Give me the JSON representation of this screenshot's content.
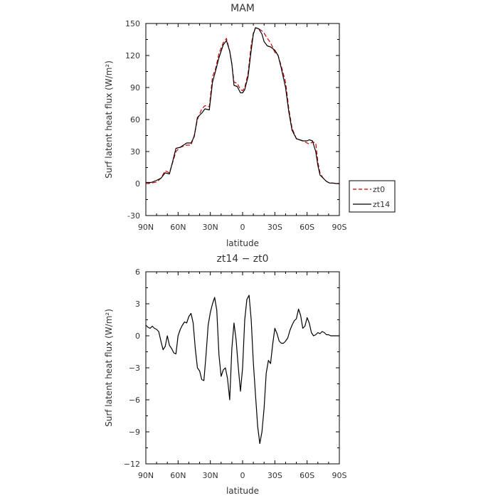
{
  "chart_data": [
    {
      "type": "line",
      "title": "MAM",
      "xlabel": "latitude",
      "ylabel": "Surf latent heat flux (W/m²)",
      "x_range": [
        90,
        -90
      ],
      "ylim": [
        -30,
        150
      ],
      "x_ticks": [
        90,
        60,
        30,
        0,
        -30,
        -60,
        -90
      ],
      "x_tick_labels": [
        "90N",
        "60N",
        "30N",
        "0",
        "30S",
        "60S",
        "90S"
      ],
      "y_ticks": [
        -30,
        0,
        30,
        60,
        90,
        120,
        150
      ],
      "y_tick_labels": [
        "-30",
        "0",
        "30",
        "60",
        "90",
        "120",
        "150"
      ],
      "grid": false,
      "legend_position": "outside-right",
      "x": [
        90,
        85,
        80,
        76,
        72,
        68,
        65,
        62,
        58,
        55,
        52,
        48,
        45,
        42,
        38,
        35,
        31,
        28,
        25,
        22,
        18,
        15,
        12,
        10,
        8,
        5,
        2,
        0,
        -2,
        -5,
        -8,
        -10,
        -12,
        -15,
        -18,
        -20,
        -23,
        -26,
        -30,
        -33,
        -36,
        -40,
        -43,
        -46,
        -50,
        -53,
        -56,
        -60,
        -62,
        -65,
        -68,
        -70,
        -72,
        -75,
        -78,
        -81,
        -84,
        -87,
        -90
      ],
      "series": [
        {
          "name": "zt0",
          "color": "#cc0000",
          "dash": true,
          "values": [
            0,
            0.5,
            1.5,
            5,
            12,
            10,
            20,
            30,
            34,
            35,
            36,
            36,
            45,
            60,
            70,
            73,
            72,
            100,
            108,
            122,
            132,
            136,
            124,
            112,
            95,
            94,
            88,
            87,
            90,
            103,
            130,
            141,
            146,
            145,
            143,
            141,
            136,
            132,
            123,
            120,
            110,
            95,
            70,
            52,
            42,
            41,
            40,
            38,
            37,
            39,
            38,
            20,
            10,
            5,
            2,
            0.5,
            0.5,
            0,
            0
          ]
        },
        {
          "name": "zt14",
          "color": "#000000",
          "dash": false,
          "values": [
            1,
            1,
            3,
            5,
            10,
            9,
            21,
            33,
            34,
            36,
            38,
            38,
            44,
            62,
            66,
            70,
            69,
            95,
            106,
            118,
            130,
            134,
            124,
            112,
            92,
            91,
            85,
            85,
            88,
            100,
            125,
            140,
            146,
            145,
            140,
            133,
            129,
            128,
            125,
            120,
            108,
            90,
            67,
            50,
            42,
            41,
            40,
            40,
            41,
            40,
            30,
            17,
            8,
            5,
            2,
            0.5,
            0.5,
            0,
            0
          ]
        }
      ]
    },
    {
      "type": "line",
      "title": "zt14 − zt0",
      "xlabel": "latitude",
      "ylabel": "Surf latent heat flux (W/m²)",
      "x_range": [
        90,
        -90
      ],
      "ylim": [
        -12,
        6
      ],
      "x_ticks": [
        90,
        60,
        30,
        0,
        -30,
        -60,
        -90
      ],
      "x_tick_labels": [
        "90N",
        "60N",
        "30N",
        "0",
        "30S",
        "60S",
        "90S"
      ],
      "y_ticks": [
        -12,
        -9,
        -6,
        -3,
        0,
        3,
        6
      ],
      "y_tick_labels": [
        "−12",
        "−9",
        "−6",
        "−3",
        "0",
        "3",
        "6"
      ],
      "grid": false,
      "x": [
        90,
        88,
        86,
        84,
        82,
        80,
        78,
        76,
        74,
        72,
        70,
        68,
        66,
        64,
        62,
        60,
        58,
        56,
        54,
        52,
        50,
        48,
        46,
        44,
        42,
        40,
        38,
        36,
        34,
        32,
        30,
        28,
        26,
        24,
        22,
        20,
        18,
        16,
        14,
        12,
        10,
        8,
        6,
        4,
        2,
        0,
        -2,
        -4,
        -6,
        -8,
        -10,
        -12,
        -14,
        -16,
        -18,
        -20,
        -22,
        -24,
        -26,
        -28,
        -30,
        -32,
        -34,
        -36,
        -38,
        -40,
        -42,
        -44,
        -46,
        -48,
        -50,
        -52,
        -54,
        -56,
        -58,
        -60,
        -62,
        -64,
        -66,
        -68,
        -70,
        -72,
        -74,
        -76,
        -78,
        -80,
        -82,
        -84,
        -86,
        -88,
        -90
      ],
      "series": [
        {
          "name": "",
          "color": "#000000",
          "values": [
            1,
            0.8,
            0.7,
            0.9,
            0.7,
            0.6,
            0.4,
            -0.5,
            -1.3,
            -1.0,
            0,
            -0.9,
            -1.2,
            -1.6,
            -1.7,
            0,
            0.6,
            1.0,
            1.3,
            1.2,
            1.8,
            2.1,
            1.2,
            -1.2,
            -3.0,
            -3.3,
            -4.1,
            -4.2,
            -1.8,
            1.0,
            2.2,
            3.0,
            3.6,
            2.4,
            -1.8,
            -3.8,
            -3.2,
            -3.0,
            -4.0,
            -6.0,
            -1.2,
            1.2,
            -0.4,
            -3.0,
            -5.2,
            -3.0,
            1.5,
            3.4,
            3.8,
            1.5,
            -2.5,
            -5.5,
            -8.5,
            -10.1,
            -9.0,
            -6.8,
            -3.5,
            -2.3,
            -2.6,
            -0.8,
            0.7,
            0.2,
            -0.5,
            -0.7,
            -0.7,
            -0.5,
            -0.2,
            0.5,
            1.0,
            1.4,
            1.6,
            2.5,
            1.9,
            0.7,
            0.9,
            1.7,
            1.2,
            0.3,
            0.0,
            0.1,
            0.3,
            0.2,
            0.4,
            0.3,
            0.1,
            0.1,
            0.0,
            0.0,
            0.0,
            0.0,
            0.0
          ]
        }
      ]
    }
  ]
}
